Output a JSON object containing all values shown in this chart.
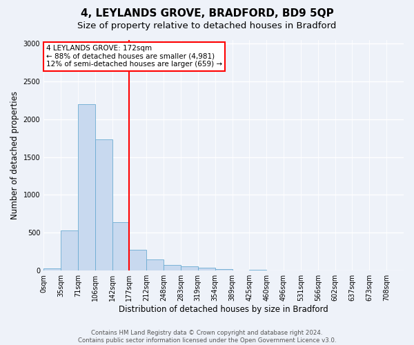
{
  "title": "4, LEYLANDS GROVE, BRADFORD, BD9 5QP",
  "subtitle": "Size of property relative to detached houses in Bradford",
  "xlabel": "Distribution of detached houses by size in Bradford",
  "ylabel": "Number of detached properties",
  "bin_labels": [
    "0sqm",
    "35sqm",
    "71sqm",
    "106sqm",
    "142sqm",
    "177sqm",
    "212sqm",
    "248sqm",
    "283sqm",
    "319sqm",
    "354sqm",
    "389sqm",
    "425sqm",
    "460sqm",
    "496sqm",
    "531sqm",
    "566sqm",
    "602sqm",
    "637sqm",
    "673sqm",
    "708sqm"
  ],
  "bar_heights": [
    30,
    530,
    2200,
    1730,
    640,
    275,
    150,
    75,
    55,
    35,
    20,
    5,
    15,
    5,
    0,
    0,
    0,
    0,
    0,
    0,
    0
  ],
  "bar_color": "#c8d9ef",
  "bar_edge_color": "#6aabd2",
  "annotation_text": "4 LEYLANDS GROVE: 172sqm\n← 88% of detached houses are smaller (4,981)\n12% of semi-detached houses are larger (659) →",
  "annotation_box_color": "white",
  "annotation_box_edge_color": "red",
  "vline_color": "red",
  "vline_x": 5.0,
  "ylim": [
    0,
    3050
  ],
  "yticks": [
    0,
    500,
    1000,
    1500,
    2000,
    2500,
    3000
  ],
  "footer_text": "Contains HM Land Registry data © Crown copyright and database right 2024.\nContains public sector information licensed under the Open Government Licence v3.0.",
  "background_color": "#eef2f9",
  "grid_color": "white",
  "title_fontsize": 11,
  "subtitle_fontsize": 9.5,
  "axis_label_fontsize": 8.5,
  "tick_fontsize": 7,
  "annotation_fontsize": 7.5,
  "footer_fontsize": 6.2
}
